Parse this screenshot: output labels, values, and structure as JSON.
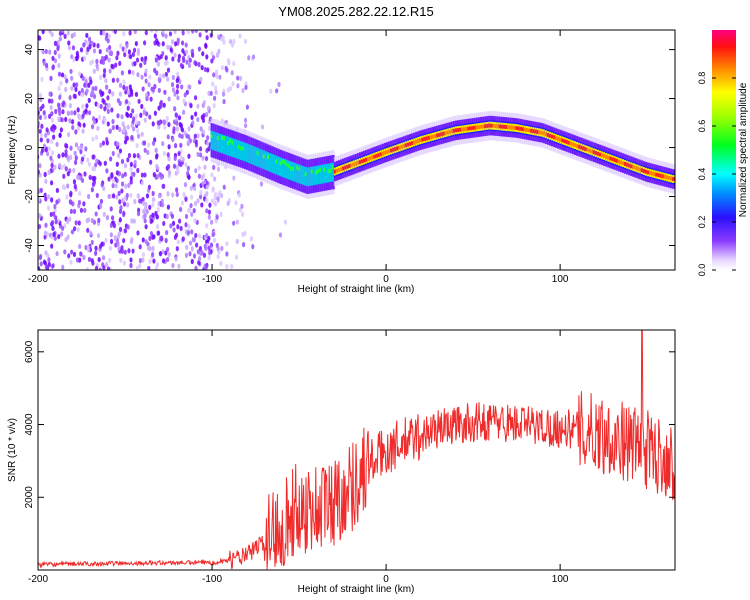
{
  "title": "YM08.2025.282.22.12.R15",
  "chart_data": [
    {
      "type": "heatmap",
      "description": "spectrogram",
      "xlabel": "Height of straight line (km)",
      "ylabel": "Frequency (Hz)",
      "xlim": [
        -200,
        166
      ],
      "ylim": [
        -50,
        48
      ],
      "xticks": [
        -200,
        -100,
        0,
        100
      ],
      "yticks": [
        -40,
        -20,
        0,
        20,
        40
      ],
      "noise_region_x": [
        -200,
        -80
      ],
      "trace": {
        "x": [
          -100,
          -80,
          -60,
          -45,
          -30,
          -15,
          0,
          20,
          40,
          60,
          75,
          90,
          105,
          120,
          135,
          150,
          166
        ],
        "freq_hz": [
          3,
          -2,
          -8,
          -12,
          -10,
          -6,
          -2,
          3,
          7,
          9,
          8,
          6,
          2,
          -2,
          -6,
          -10,
          -13
        ]
      },
      "colorbar": {
        "label": "Normalized spectral amplitude",
        "range": [
          0,
          1
        ],
        "ticks": [
          "0.0",
          "0.2",
          "0.4",
          "0.6",
          "0.8"
        ]
      }
    },
    {
      "type": "line",
      "xlabel": "Height of straight line (km)",
      "ylabel": "SNR (10 * v/v)",
      "xlim": [
        -200,
        166
      ],
      "ylim": [
        0,
        6600
      ],
      "xticks": [
        -200,
        -100,
        0,
        100
      ],
      "yticks": [
        2000,
        4000,
        6000
      ],
      "color": "#ef2b2b",
      "series": {
        "name": "SNR",
        "x": [
          -200,
          -160,
          -120,
          -100,
          -90,
          -80,
          -70,
          -60,
          -50,
          -40,
          -30,
          -20,
          -10,
          0,
          10,
          20,
          30,
          40,
          60,
          80,
          100,
          120,
          140,
          150,
          160,
          166
        ],
        "y": [
          150,
          180,
          200,
          200,
          280,
          400,
          800,
          1300,
          1700,
          1700,
          1900,
          2300,
          2900,
          3300,
          3500,
          3700,
          3900,
          4000,
          4100,
          4000,
          3900,
          3800,
          3500,
          3300,
          3100,
          3000
        ]
      },
      "peak": {
        "x": 147,
        "y": 6600
      }
    }
  ]
}
